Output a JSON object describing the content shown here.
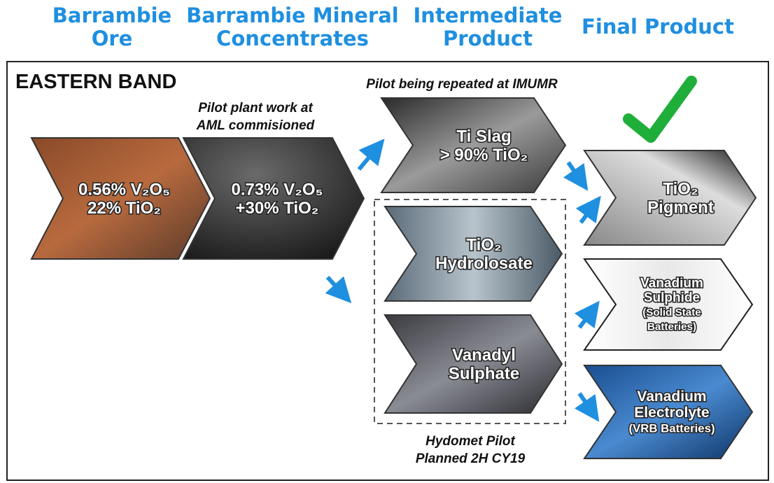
{
  "columns": [
    {
      "lines": [
        "Barrambie",
        "Ore"
      ]
    },
    {
      "lines": [
        "Barrambie Mineral",
        "Concentrates"
      ]
    },
    {
      "lines": [
        "Intermediate",
        "Product"
      ]
    },
    {
      "lines": [
        "Final Product"
      ]
    }
  ],
  "section": "EASTERN BAND",
  "annotations": {
    "pilot_aml": [
      "Pilot plant work at",
      "AML commisioned"
    ],
    "pilot_imumr": [
      "Pilot being repeated at IMUMR"
    ],
    "hydromet": [
      "Hydomet Pilot",
      "Planned 2H CY19"
    ]
  },
  "nodes": [
    {
      "lines": [
        "0.56% V₂O₅",
        "22% TiO₂"
      ]
    },
    {
      "lines": [
        "0.73% V₂O₅",
        "+30% TiO₂"
      ]
    },
    {
      "lines": [
        "Ti Slag",
        "> 90% TiO₂"
      ]
    },
    {
      "lines": [
        "TiO₂",
        "Hydrolosate"
      ]
    },
    {
      "lines": [
        "Vanadyl",
        "Sulphate"
      ]
    },
    {
      "lines": [
        "TiO₂",
        "Pigment"
      ]
    },
    {
      "lines": [
        "Vanadium",
        "Sulphide",
        "(Solid State",
        "Batteries)"
      ]
    },
    {
      "lines": [
        "Vanadium",
        "Electrolyte",
        "(VRB Batteries)"
      ]
    }
  ]
}
